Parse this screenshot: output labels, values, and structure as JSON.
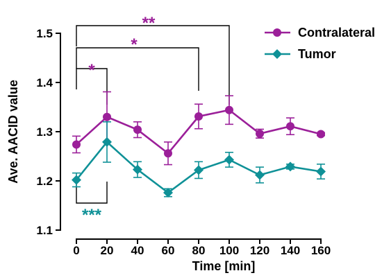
{
  "chart_data": {
    "type": "line",
    "xlabel": "Time [min]",
    "ylabel": "Ave. AACID value",
    "x": [
      0,
      20,
      40,
      60,
      80,
      100,
      120,
      140,
      160
    ],
    "x_ticks": [
      "0",
      "20",
      "40",
      "60",
      "80",
      "100",
      "120",
      "140",
      "160"
    ],
    "xlim": [
      0,
      160
    ],
    "ylim": [
      1.1,
      1.5
    ],
    "y_ticks": [
      "1.1",
      "1.2",
      "1.3",
      "1.4",
      "1.5"
    ],
    "legend_position": "top-right",
    "series": [
      {
        "name": "Contralateral",
        "color": "#9b1f99",
        "marker": "circle",
        "values": [
          1.274,
          1.33,
          1.304,
          1.256,
          1.331,
          1.344,
          1.296,
          1.311,
          1.295
        ],
        "error": [
          0.017,
          0.051,
          0.016,
          0.023,
          0.025,
          0.029,
          0.009,
          0.017,
          0.003
        ]
      },
      {
        "name": "Tumor",
        "color": "#0f9197",
        "marker": "diamond",
        "values": [
          1.202,
          1.279,
          1.223,
          1.176,
          1.222,
          1.243,
          1.212,
          1.229,
          1.219
        ],
        "error": [
          0.014,
          0.041,
          0.016,
          0.008,
          0.017,
          0.015,
          0.016,
          0.005,
          0.015
        ]
      }
    ],
    "annotations": [
      {
        "label": "*",
        "from_x": 0,
        "to_x": 20,
        "color": "#9b1f99",
        "position": "above"
      },
      {
        "label": "*",
        "from_x": 0,
        "to_x": 80,
        "color": "#9b1f99",
        "position": "above"
      },
      {
        "label": "**",
        "from_x": 0,
        "to_x": 100,
        "color": "#9b1f99",
        "position": "above"
      },
      {
        "label": "***",
        "from_x": 0,
        "to_x": 20,
        "color": "#0f9197",
        "position": "below"
      }
    ]
  }
}
